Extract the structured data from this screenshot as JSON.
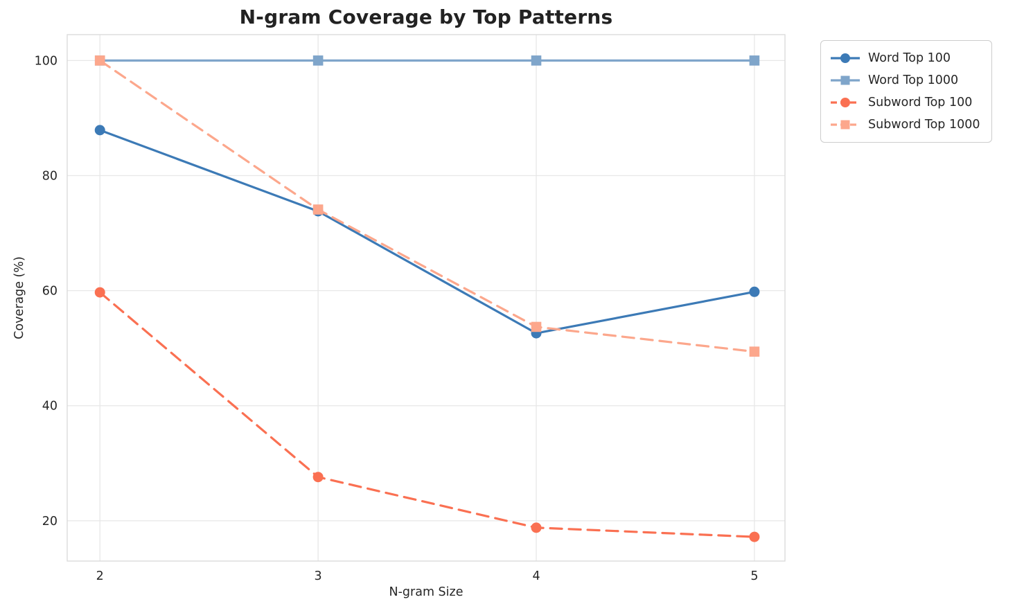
{
  "chart_data": {
    "type": "line",
    "title": "N-gram Coverage by Top Patterns",
    "xlabel": "N-gram Size",
    "ylabel": "Coverage (%)",
    "x": [
      2,
      3,
      4,
      5
    ],
    "xticks": [
      2,
      3,
      4,
      5
    ],
    "yticks": [
      20,
      40,
      60,
      80,
      100
    ],
    "xlim": [
      1.85,
      5.14
    ],
    "ylim": [
      13,
      104.5
    ],
    "grid": true,
    "legend_position": "outside-upper-right",
    "series": [
      {
        "name": "Word Top 100",
        "values": [
          87.9,
          73.8,
          52.6,
          59.8
        ],
        "color": "#3C7AB6",
        "linestyle": "solid",
        "marker": "circle"
      },
      {
        "name": "Word Top 1000",
        "values": [
          100,
          100,
          100,
          100
        ],
        "color": "#7FA5CA",
        "linestyle": "solid",
        "marker": "square"
      },
      {
        "name": "Subword Top 100",
        "values": [
          59.7,
          27.6,
          18.8,
          17.2
        ],
        "color": "#FA7052",
        "linestyle": "dashed",
        "marker": "circle"
      },
      {
        "name": "Subword Top 1000",
        "values": [
          100,
          74.1,
          53.7,
          49.4
        ],
        "color": "#FCA78C",
        "linestyle": "dashed",
        "marker": "square"
      }
    ],
    "colors": {
      "grid": "#e7e7e7",
      "spine": "#d9d9d9",
      "tick_text": "#262626",
      "title_text": "#222222"
    }
  }
}
